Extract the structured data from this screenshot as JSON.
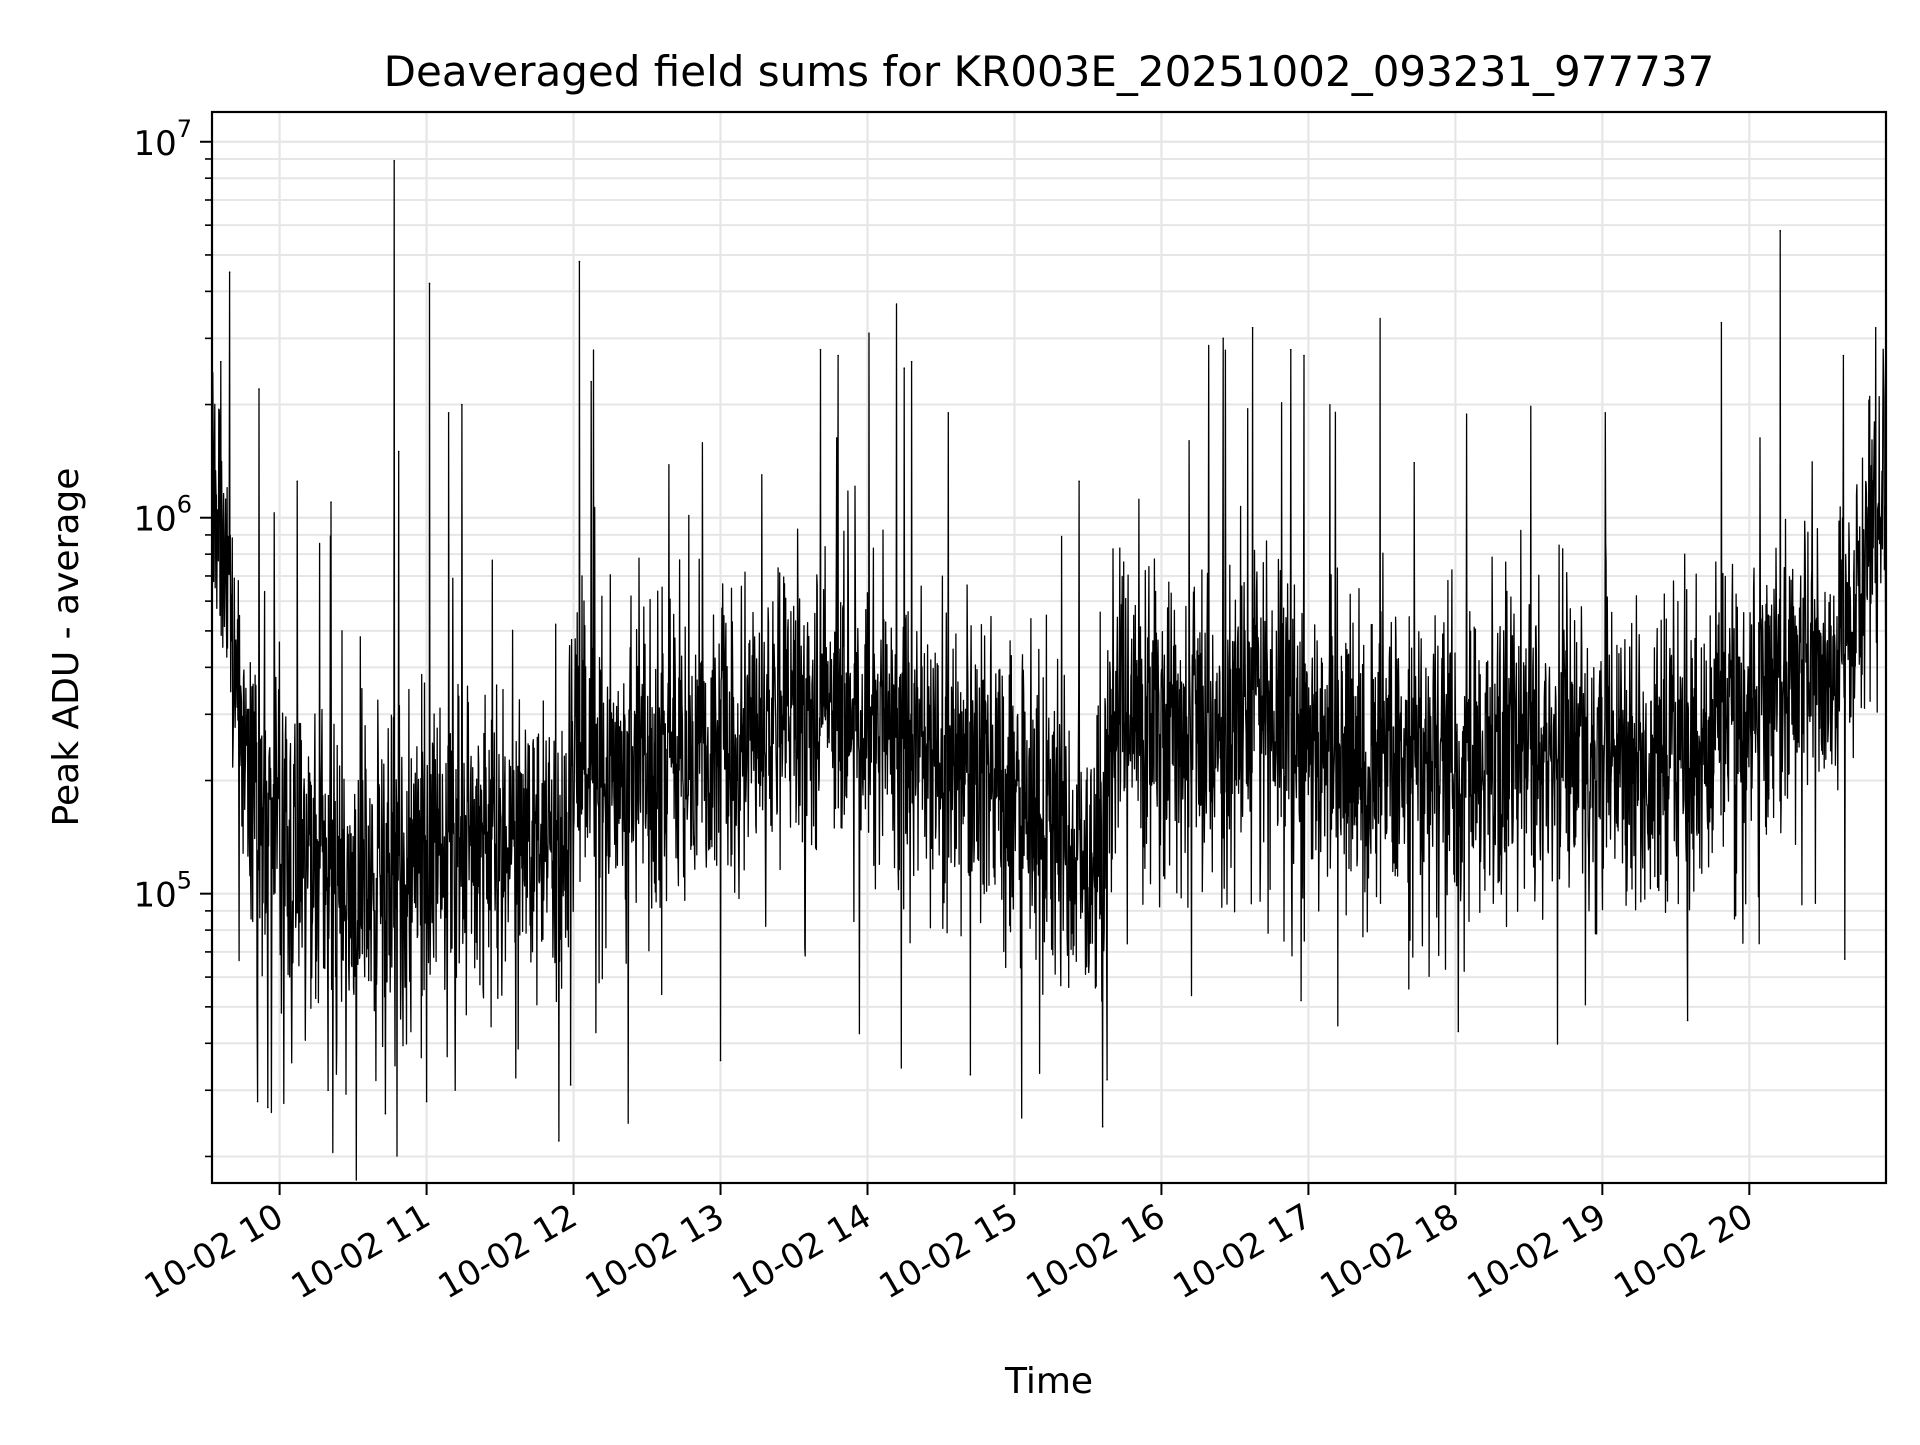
{
  "chart_data": {
    "type": "line",
    "title": "Deaveraged field sums for KR003E_20251002_093231_977737",
    "xlabel": "Time",
    "ylabel": "Peak ADU - average",
    "yscale": "log",
    "ylim": [
      17000,
      12000000
    ],
    "xlim_hours": [
      9.54,
      20.93
    ],
    "grid": true,
    "x_ticks": [
      {
        "label": "10-02 10",
        "hour": 10
      },
      {
        "label": "10-02 11",
        "hour": 11
      },
      {
        "label": "10-02 12",
        "hour": 12
      },
      {
        "label": "10-02 13",
        "hour": 13
      },
      {
        "label": "10-02 14",
        "hour": 14
      },
      {
        "label": "10-02 15",
        "hour": 15
      },
      {
        "label": "10-02 16",
        "hour": 16
      },
      {
        "label": "10-02 17",
        "hour": 17
      },
      {
        "label": "10-02 18",
        "hour": 18
      },
      {
        "label": "10-02 19",
        "hour": 19
      },
      {
        "label": "10-02 20",
        "hour": 20
      }
    ],
    "y_ticks": [
      {
        "base": "10",
        "exp": "5",
        "value": 100000
      },
      {
        "base": "10",
        "exp": "6",
        "value": 1000000
      },
      {
        "base": "10",
        "exp": "7",
        "value": 10000000
      }
    ],
    "series": [
      {
        "name": "deaveraged field sum",
        "color": "#000000",
        "baseline_trend": [
          [
            9.54,
            1200000
          ],
          [
            9.62,
            900000
          ],
          [
            9.72,
            300000
          ],
          [
            9.85,
            170000
          ],
          [
            10.2,
            120000
          ],
          [
            10.6,
            100000
          ],
          [
            10.9,
            110000
          ],
          [
            11.3,
            140000
          ],
          [
            11.8,
            130000
          ],
          [
            11.95,
            120000
          ],
          [
            12.05,
            280000
          ],
          [
            12.2,
            200000
          ],
          [
            12.6,
            220000
          ],
          [
            13.0,
            230000
          ],
          [
            13.5,
            280000
          ],
          [
            13.9,
            300000
          ],
          [
            14.2,
            290000
          ],
          [
            14.5,
            220000
          ],
          [
            14.9,
            200000
          ],
          [
            15.2,
            160000
          ],
          [
            15.55,
            110000
          ],
          [
            15.7,
            280000
          ],
          [
            16.0,
            280000
          ],
          [
            16.4,
            240000
          ],
          [
            16.55,
            300000
          ],
          [
            16.8,
            300000
          ],
          [
            17.2,
            220000
          ],
          [
            17.6,
            240000
          ],
          [
            18.0,
            220000
          ],
          [
            18.4,
            260000
          ],
          [
            18.8,
            250000
          ],
          [
            19.2,
            230000
          ],
          [
            19.6,
            230000
          ],
          [
            19.9,
            280000
          ],
          [
            20.2,
            380000
          ],
          [
            20.6,
            420000
          ],
          [
            20.85,
            1000000
          ],
          [
            20.93,
            1200000
          ]
        ],
        "peaks": [
          [
            9.6,
            2600000
          ],
          [
            9.66,
            4500000
          ],
          [
            9.86,
            2200000
          ],
          [
            10.12,
            1250000
          ],
          [
            10.35,
            1100000
          ],
          [
            10.78,
            8900000
          ],
          [
            10.81,
            1500000
          ],
          [
            11.02,
            4200000
          ],
          [
            11.15,
            1900000
          ],
          [
            11.24,
            2000000
          ],
          [
            12.04,
            4800000
          ],
          [
            12.12,
            2300000
          ],
          [
            13.68,
            2800000
          ],
          [
            13.8,
            2700000
          ],
          [
            14.25,
            2500000
          ],
          [
            14.3,
            2600000
          ],
          [
            14.55,
            1900000
          ],
          [
            15.44,
            1250000
          ],
          [
            16.42,
            3000000
          ],
          [
            16.62,
            3200000
          ],
          [
            16.88,
            2800000
          ],
          [
            16.97,
            2700000
          ],
          [
            17.72,
            1400000
          ],
          [
            19.02,
            1900000
          ],
          [
            19.81,
            3300000
          ],
          [
            20.21,
            5800000
          ],
          [
            20.64,
            2700000
          ],
          [
            20.86,
            3200000
          ]
        ],
        "troughs": [
          [
            9.85,
            28000
          ],
          [
            9.92,
            27000
          ],
          [
            10.33,
            30000
          ],
          [
            10.72,
            26000
          ],
          [
            11.0,
            28000
          ],
          [
            11.9,
            22000
          ],
          [
            11.98,
            31000
          ],
          [
            13.0,
            36000
          ],
          [
            14.7,
            33000
          ],
          [
            15.6,
            24000
          ],
          [
            15.63,
            32000
          ],
          [
            16.95,
            52000
          ],
          [
            18.02,
            43000
          ],
          [
            19.58,
            46000
          ],
          [
            20.65,
            67000
          ]
        ]
      }
    ]
  }
}
